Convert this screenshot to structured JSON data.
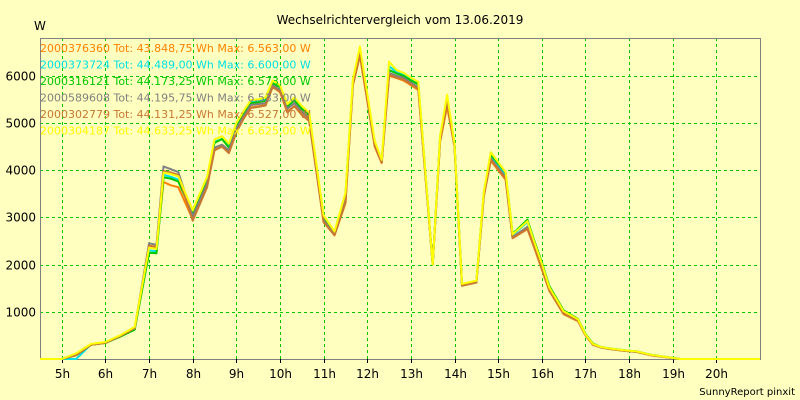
{
  "chart_data": {
    "type": "line",
    "title": "Wechselrichtervergleich vom 13.06.2019",
    "ylabel": "W",
    "xlabel": "",
    "credit": "SunnyReport pinxit",
    "x_range": [
      4.5,
      21.0
    ],
    "ylim": [
      0,
      6800
    ],
    "grid": true,
    "legend_placement": "top-left",
    "x_ticks": [
      {
        "value": 5,
        "label": "5h"
      },
      {
        "value": 6,
        "label": "6h"
      },
      {
        "value": 7,
        "label": "7h"
      },
      {
        "value": 8,
        "label": "8h"
      },
      {
        "value": 9,
        "label": "9h"
      },
      {
        "value": 10,
        "label": "10h"
      },
      {
        "value": 11,
        "label": "11h"
      },
      {
        "value": 12,
        "label": "12h"
      },
      {
        "value": 13,
        "label": "13h"
      },
      {
        "value": 14,
        "label": "14h"
      },
      {
        "value": 15,
        "label": "15h"
      },
      {
        "value": 16,
        "label": "16h"
      },
      {
        "value": 17,
        "label": "17h"
      },
      {
        "value": 18,
        "label": "18h"
      },
      {
        "value": 19,
        "label": "19h"
      },
      {
        "value": 20,
        "label": "20h"
      }
    ],
    "y_ticks": [
      {
        "value": 1000,
        "label": "1000"
      },
      {
        "value": 2000,
        "label": "2000"
      },
      {
        "value": 3000,
        "label": "3000"
      },
      {
        "value": 4000,
        "label": "4000"
      },
      {
        "value": 5000,
        "label": "5000"
      },
      {
        "value": 6000,
        "label": "6000"
      }
    ],
    "x": [
      4.5,
      5.0,
      5.33,
      5.67,
      6.0,
      6.33,
      6.67,
      7.0,
      7.17,
      7.33,
      7.5,
      7.67,
      8.0,
      8.33,
      8.5,
      8.67,
      8.83,
      9.0,
      9.17,
      9.33,
      9.5,
      9.67,
      9.83,
      10.0,
      10.17,
      10.33,
      10.5,
      10.67,
      11.0,
      11.25,
      11.5,
      11.67,
      11.83,
      12.17,
      12.33,
      12.5,
      12.67,
      12.83,
      13.0,
      13.17,
      13.5,
      13.67,
      13.83,
      14.0,
      14.17,
      14.5,
      14.67,
      14.83,
      15.17,
      15.33,
      15.67,
      15.83,
      16.0,
      16.17,
      16.5,
      16.83,
      17.0,
      17.17,
      17.33,
      17.5,
      17.83,
      18.17,
      18.5,
      18.83,
      19.17,
      19.5,
      19.83,
      20.17,
      20.5,
      21.0
    ],
    "series": [
      {
        "name": "2000376360 Tot: 43.848,75 Wh Max: 6.563,00 W",
        "color": "#FF8000",
        "values": [
          0,
          0,
          80,
          300,
          340,
          480,
          640,
          2380,
          2340,
          3750,
          3680,
          3640,
          2960,
          3680,
          4450,
          4500,
          4380,
          4830,
          5100,
          5330,
          5350,
          5380,
          5780,
          5650,
          5240,
          5350,
          5170,
          5050,
          2900,
          2620,
          3300,
          5800,
          6420,
          4500,
          4150,
          6000,
          5950,
          5900,
          5800,
          5700,
          2000,
          4600,
          5350,
          4500,
          1560,
          1620,
          3450,
          4200,
          3800,
          2560,
          2750,
          2350,
          1900,
          1450,
          950,
          800,
          500,
          300,
          250,
          220,
          180,
          150,
          80,
          40,
          0,
          0,
          0,
          0,
          0,
          0
        ]
      },
      {
        "name": "2000373724 Tot: 44.489,00 Wh Max: 6.600,00 W",
        "color": "#00E0E0",
        "values": [
          0,
          0,
          0,
          310,
          350,
          480,
          640,
          2300,
          2280,
          3900,
          3860,
          3800,
          3100,
          3800,
          4600,
          4660,
          4520,
          4960,
          5220,
          5440,
          5460,
          5500,
          5870,
          5780,
          5380,
          5520,
          5330,
          5200,
          3020,
          2680,
          3500,
          5880,
          6560,
          4600,
          4200,
          6200,
          6080,
          6020,
          5930,
          5850,
          2000,
          4700,
          5550,
          4550,
          1580,
          1650,
          3500,
          4300,
          3900,
          2620,
          2900,
          2450,
          2000,
          1500,
          1000,
          830,
          520,
          320,
          260,
          230,
          190,
          160,
          90,
          45,
          0,
          0,
          0,
          0,
          0,
          0
        ]
      },
      {
        "name": "2000316121 Tot: 44.173,25 Wh Max: 6.573,00 W",
        "color": "#00C800",
        "values": [
          0,
          0,
          80,
          300,
          340,
          470,
          620,
          2250,
          2240,
          3850,
          3820,
          3760,
          3080,
          3760,
          4580,
          4660,
          4480,
          4920,
          5200,
          5420,
          5440,
          5470,
          5840,
          5760,
          5350,
          5480,
          5300,
          5160,
          3010,
          2660,
          3480,
          5860,
          6530,
          4570,
          4190,
          6120,
          6050,
          6000,
          5900,
          5820,
          2000,
          4700,
          5500,
          4550,
          1570,
          1640,
          3520,
          4330,
          3950,
          2650,
          2950,
          2500,
          2050,
          1550,
          1030,
          850,
          530,
          330,
          260,
          230,
          190,
          160,
          90,
          45,
          0,
          0,
          0,
          0,
          0,
          0
        ]
      },
      {
        "name": "2000589608 Tot: 44.195,75 Wh Max: 6.533,00 W",
        "color": "#808080",
        "values": [
          0,
          0,
          80,
          310,
          350,
          490,
          660,
          2450,
          2420,
          4080,
          4020,
          3960,
          3020,
          3720,
          4480,
          4540,
          4420,
          4880,
          5150,
          5380,
          5400,
          5420,
          5800,
          5700,
          5300,
          5420,
          5240,
          5100,
          2940,
          2640,
          3400,
          5840,
          6500,
          4550,
          4180,
          6060,
          6000,
          5960,
          5850,
          5760,
          2000,
          4650,
          5450,
          4520,
          1560,
          1630,
          3470,
          4250,
          3850,
          2580,
          2800,
          2400,
          1950,
          1480,
          980,
          820,
          510,
          310,
          250,
          220,
          180,
          150,
          80,
          40,
          0,
          0,
          0,
          0,
          0,
          0
        ]
      },
      {
        "name": "2000302779 Tot: 44.131,25 Wh Max: 6.527,00 W",
        "color": "#C87832",
        "values": [
          0,
          0,
          80,
          300,
          340,
          480,
          650,
          2400,
          2380,
          3980,
          3950,
          3900,
          2930,
          3640,
          4420,
          4500,
          4360,
          4800,
          5100,
          5320,
          5340,
          5370,
          5760,
          5660,
          5220,
          5360,
          5180,
          5040,
          2900,
          2620,
          3320,
          5800,
          6460,
          4520,
          4160,
          6020,
          5960,
          5920,
          5820,
          5720,
          2000,
          4620,
          5420,
          4500,
          1550,
          1620,
          3440,
          4220,
          3820,
          2560,
          2760,
          2370,
          1920,
          1460,
          960,
          810,
          500,
          300,
          250,
          220,
          180,
          150,
          80,
          40,
          0,
          0,
          0,
          0,
          0,
          0
        ]
      },
      {
        "name": "2000304187 Tot: 44.633,25 Wh Max: 6.625,00 W",
        "color": "#FFFF00",
        "values": [
          0,
          0,
          120,
          320,
          360,
          500,
          680,
          2360,
          2330,
          3950,
          3920,
          3870,
          3150,
          3860,
          4650,
          4720,
          4560,
          5000,
          5260,
          5480,
          5500,
          5540,
          5900,
          5800,
          5400,
          5540,
          5360,
          5220,
          3040,
          2700,
          3520,
          5920,
          6620,
          4620,
          4220,
          6300,
          6120,
          6060,
          5960,
          5870,
          2000,
          4720,
          5600,
          4560,
          1590,
          1660,
          3540,
          4380,
          3960,
          2640,
          2920,
          2470,
          2020,
          1520,
          1010,
          840,
          520,
          320,
          260,
          230,
          190,
          160,
          90,
          45,
          0,
          0,
          0,
          0,
          0,
          0
        ]
      }
    ]
  }
}
